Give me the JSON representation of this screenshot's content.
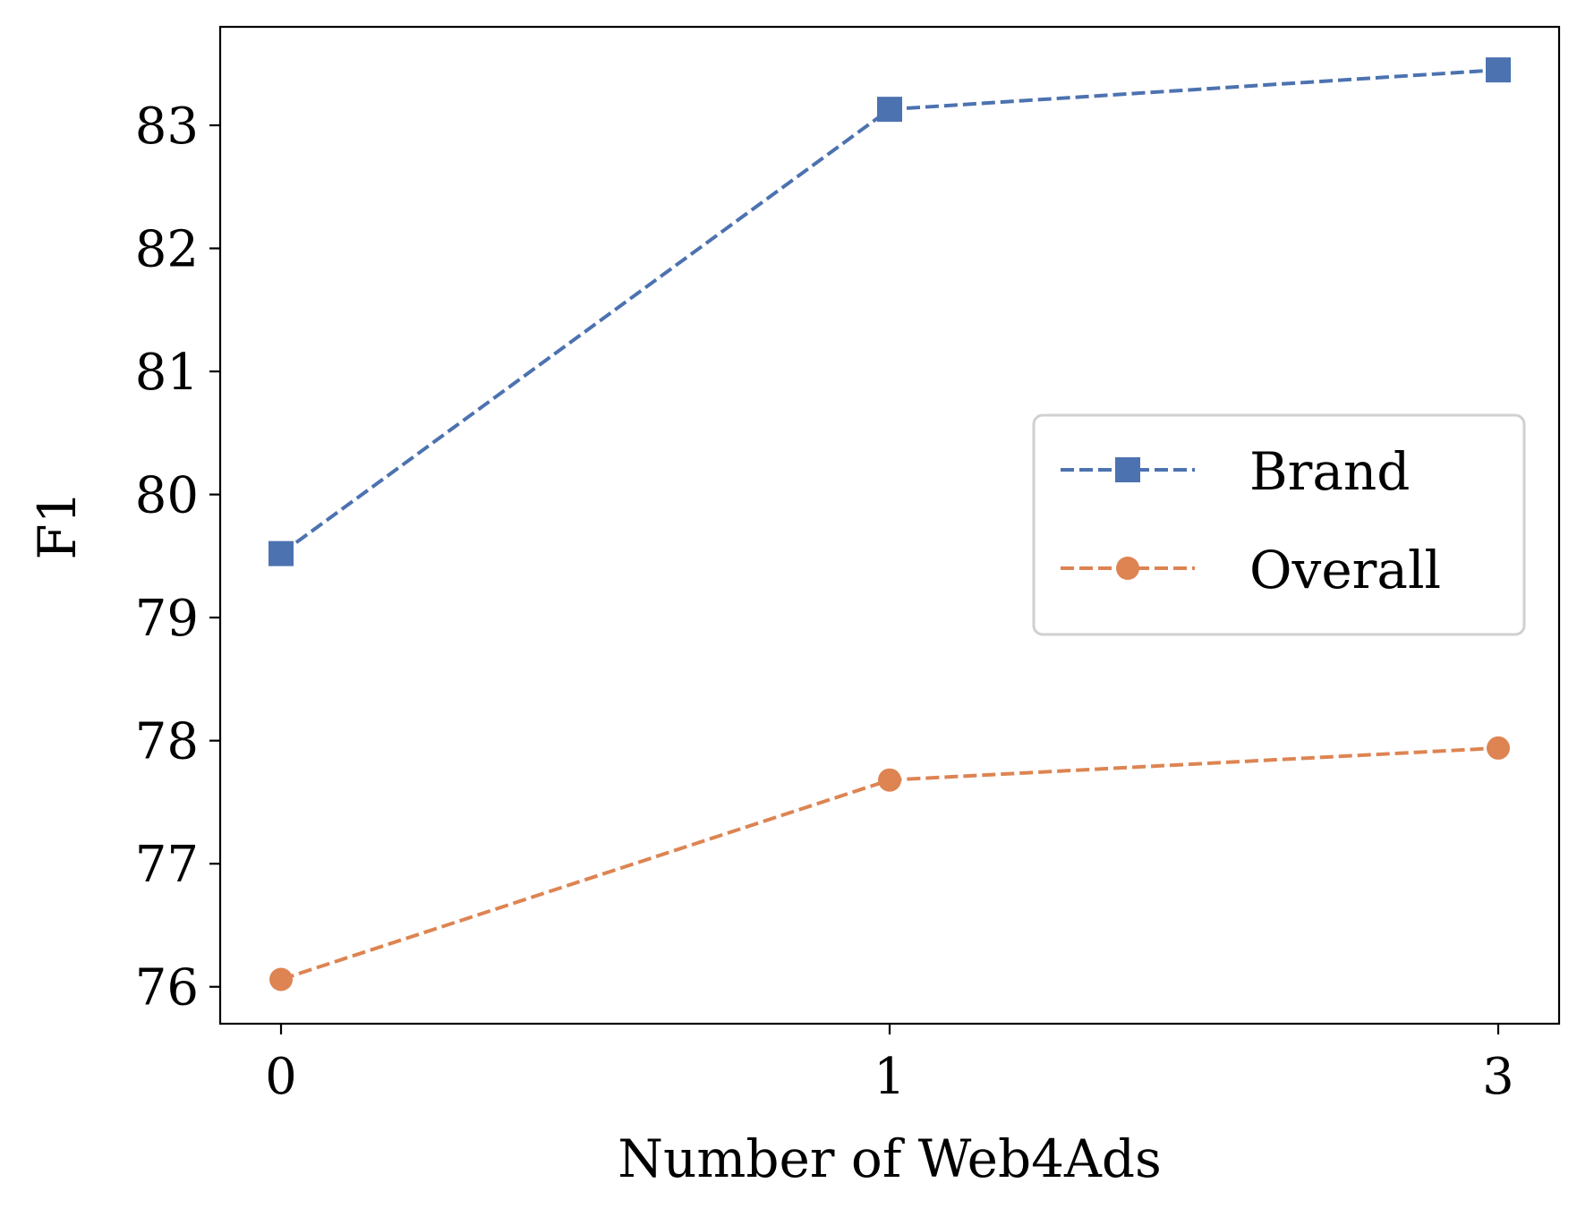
{
  "chart_data": {
    "type": "line",
    "title": "",
    "xlabel": "Number of Web4Ads",
    "ylabel": "F1",
    "categories": [
      "0",
      "1",
      "3"
    ],
    "ylim": [
      75.7,
      83.8
    ],
    "yticks": [
      76,
      77,
      78,
      79,
      80,
      81,
      82,
      83
    ],
    "grid": false,
    "legend_position": "center-right",
    "series": [
      {
        "name": "Brand",
        "values": [
          79.52,
          83.13,
          83.45
        ],
        "color": "#4c72b0",
        "marker": "square",
        "linestyle": "dashed"
      },
      {
        "name": "Overall",
        "values": [
          76.06,
          77.68,
          77.94
        ],
        "color": "#dd8452",
        "marker": "circle",
        "linestyle": "dashed"
      }
    ]
  }
}
